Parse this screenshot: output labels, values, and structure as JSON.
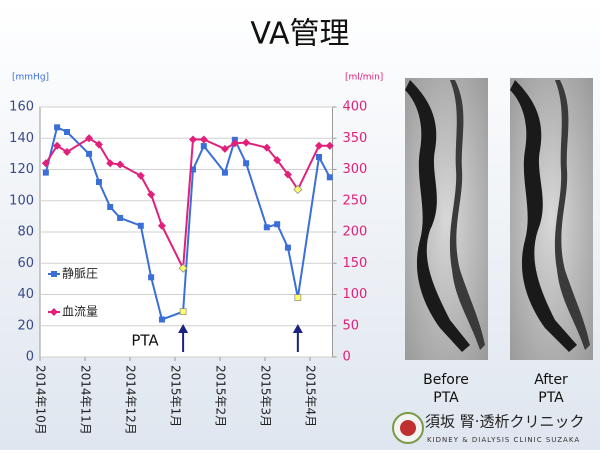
{
  "chart_data": {
    "type": "line",
    "title": "VA管理",
    "x": [
      0.13,
      0.38,
      0.6,
      1.09,
      1.31,
      1.56,
      1.78,
      2.24,
      2.47,
      2.71,
      3.18,
      3.4,
      3.64,
      4.11,
      4.33,
      4.58,
      5.04,
      5.27,
      5.51,
      5.73,
      6.2,
      6.44
    ],
    "xlim": [
      0,
      6.5
    ],
    "xticks": [
      {
        "value": 0,
        "label": "2014年10月"
      },
      {
        "value": 1,
        "label": "2014年11月"
      },
      {
        "value": 2,
        "label": "2014年12月"
      },
      {
        "value": 3,
        "label": "2015年1月"
      },
      {
        "value": 4,
        "label": "2015年2月"
      },
      {
        "value": 5,
        "label": "2015年3月"
      },
      {
        "value": 6,
        "label": "2015年4月"
      }
    ],
    "ylim": [
      0,
      160
    ],
    "yticks": [
      0,
      20,
      40,
      60,
      80,
      100,
      120,
      140,
      160
    ],
    "y2lim": [
      0,
      400
    ],
    "y2ticks": [
      0,
      50,
      100,
      150,
      200,
      250,
      300,
      350,
      400
    ],
    "ylabel": "[mmHg]",
    "y2label": "[ml/min]",
    "grid": true,
    "highlight_color": "#ffff66",
    "highlight": [
      10,
      19
    ],
    "annotation": "PTA",
    "series": [
      {
        "name": "静脈圧",
        "color": "#3a6fd8",
        "marker": "square",
        "values": [
          118,
          147,
          144,
          130,
          112,
          96,
          89,
          84,
          51,
          24,
          29,
          120,
          135,
          118,
          139,
          124,
          83,
          85,
          70,
          38,
          128,
          115
        ]
      },
      {
        "name": "血流量",
        "color": "#e0207a",
        "marker": "diamond",
        "axis": "y2",
        "values": [
          310,
          338,
          328,
          350,
          340,
          310,
          308,
          290,
          260,
          210,
          142,
          348,
          348,
          333,
          342,
          343,
          335,
          315,
          292,
          268,
          338,
          338
        ]
      }
    ]
  },
  "images": [
    {
      "caption": [
        "Before",
        "PTA"
      ]
    },
    {
      "caption": [
        "After",
        "PTA"
      ]
    }
  ],
  "logo": {
    "name": "須坂 腎·透析クリニック",
    "subtitle": "KIDNEY & DIALYSIS CLINIC SUZAKA"
  }
}
